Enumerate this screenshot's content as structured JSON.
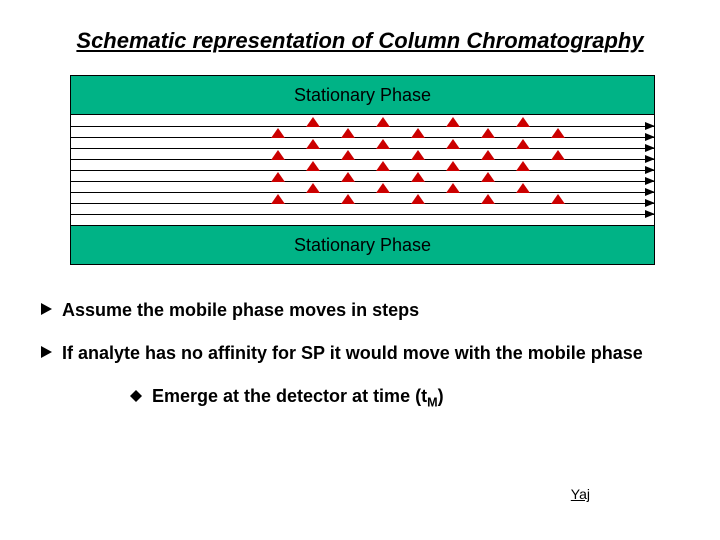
{
  "title": "Schematic representation of Column Chromatography",
  "diagram": {
    "stationary_label_top": "Stationary Phase",
    "stationary_label_bottom": "Stationary Phase",
    "stationary_color": "#00b386",
    "flow_lines": 9,
    "flow_area_height": 110,
    "flow_line_spacing": 11,
    "flow_line_start": 11,
    "triangle_color": "#cc0000",
    "triangle_border_bottom": 10,
    "triangles": [
      {
        "row": 0,
        "positions": [
          235,
          305,
          375,
          445
        ]
      },
      {
        "row": 1,
        "positions": [
          200,
          270,
          340,
          410,
          480
        ]
      },
      {
        "row": 2,
        "positions": [
          235,
          305,
          375,
          445
        ]
      },
      {
        "row": 3,
        "positions": [
          200,
          270,
          340,
          410,
          480
        ]
      },
      {
        "row": 4,
        "positions": [
          235,
          305,
          375,
          445
        ]
      },
      {
        "row": 5,
        "positions": [
          200,
          270,
          340,
          410
        ]
      },
      {
        "row": 6,
        "positions": [
          235,
          305,
          375,
          445
        ]
      },
      {
        "row": 7,
        "positions": [
          200,
          270,
          340,
          410,
          480
        ]
      }
    ]
  },
  "bullets": {
    "b1": "Assume the mobile phase moves in steps",
    "b2": "If analyte has no affinity for SP it would move with the mobile phase",
    "sub1_pre": "Emerge at the detector at time (t",
    "sub1_sub": "M",
    "sub1_post": ")"
  },
  "footer": "Yaj",
  "icons": {
    "bullet_arrow_fill": "#000000",
    "diamond_fill": "#000000"
  }
}
